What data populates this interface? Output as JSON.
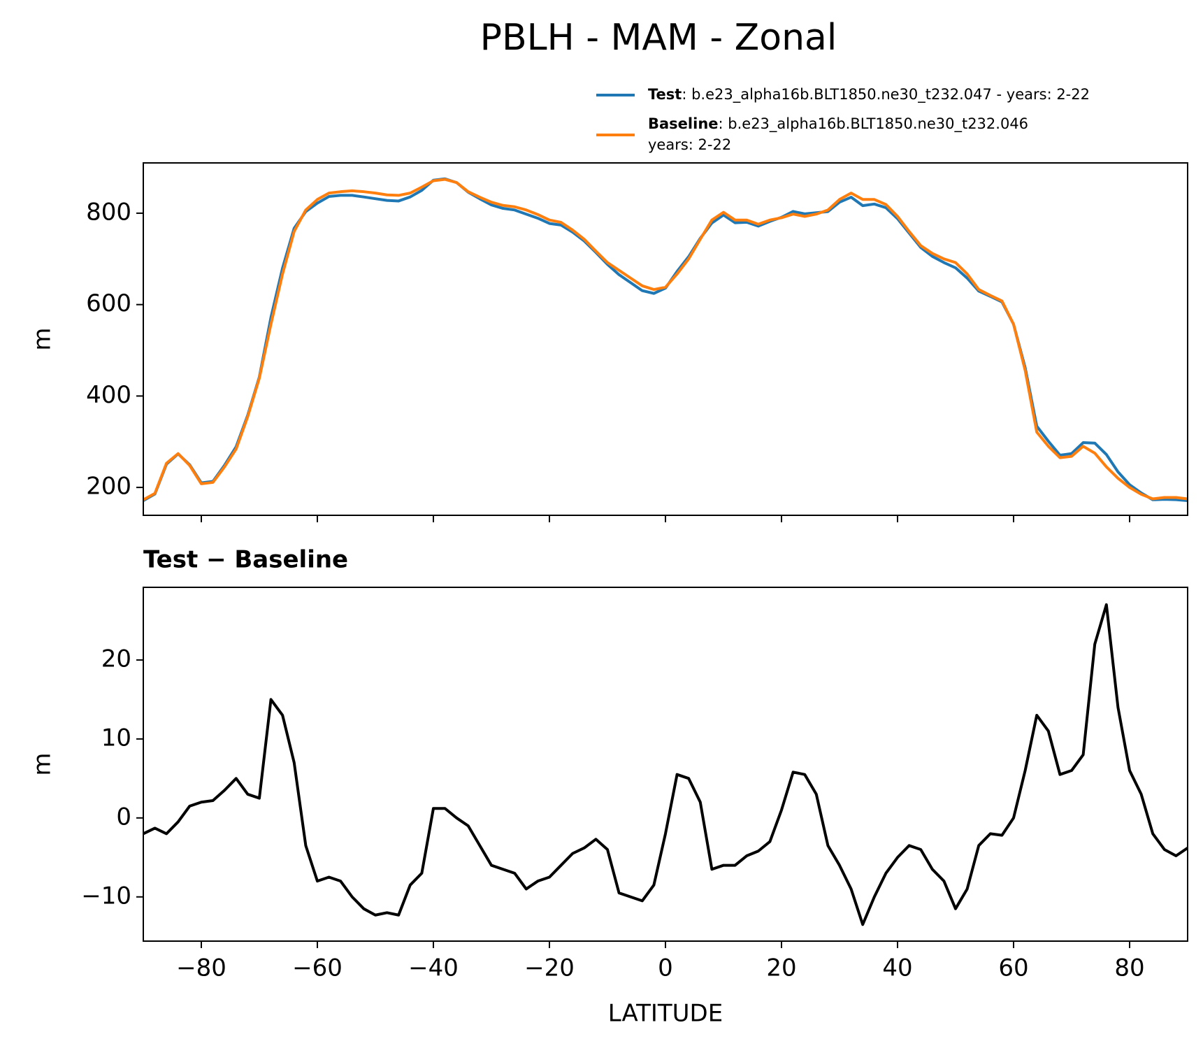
{
  "title": "PBLH - MAM - Zonal",
  "chart_data": [
    {
      "type": "line",
      "ylabel": "m",
      "x": [
        -90,
        -88,
        -86,
        -84,
        -82,
        -80,
        -78,
        -76,
        -74,
        -72,
        -70,
        -68,
        -66,
        -64,
        -62,
        -60,
        -58,
        -56,
        -54,
        -52,
        -50,
        -48,
        -46,
        -44,
        -42,
        -40,
        -38,
        -36,
        -34,
        -32,
        -30,
        -28,
        -26,
        -24,
        -22,
        -20,
        -18,
        -16,
        -14,
        -12,
        -10,
        -8,
        -6,
        -4,
        -2,
        0,
        2,
        4,
        6,
        8,
        10,
        12,
        14,
        16,
        18,
        20,
        22,
        24,
        26,
        28,
        30,
        32,
        34,
        36,
        38,
        40,
        42,
        44,
        46,
        48,
        50,
        52,
        54,
        56,
        58,
        60,
        62,
        64,
        66,
        68,
        70,
        72,
        74,
        76,
        78,
        80,
        82,
        84,
        86,
        88,
        90
      ],
      "series": [
        {
          "name": "Test",
          "description": [
            ": b.e23_alpha16b.BLT1850.ne30_t232.047 - years: 2-22"
          ],
          "color": "#1f77b4",
          "values": [
            171,
            185.7,
            251,
            273.5,
            249.5,
            210,
            213.2,
            248.5,
            289,
            358,
            441.5,
            572,
            680,
            767,
            803.5,
            822,
            836.5,
            839,
            839,
            835.5,
            831.7,
            828,
            826.7,
            835.5,
            850,
            872.2,
            875.2,
            867,
            846,
            831.5,
            818,
            810.5,
            807,
            798,
            789,
            777.5,
            774,
            758.5,
            739.2,
            714.3,
            688,
            665.5,
            648,
            630.5,
            624.5,
            636,
            672.5,
            705,
            745,
            778.5,
            796,
            779,
            780.2,
            771.8,
            782,
            791,
            803.8,
            798.5,
            801,
            803.5,
            824,
            835,
            816.5,
            820,
            812,
            788,
            756.5,
            725,
            705.5,
            692,
            680.5,
            658,
            629.5,
            618,
            605.8,
            557,
            462,
            334,
            301,
            270.5,
            274,
            298,
            297,
            272,
            234,
            206,
            188,
            173,
            174,
            173.2,
            171.2
          ]
        },
        {
          "name": "Baseline",
          "description": [
            ": b.e23_alpha16b.BLT1850.ne30_t232.046",
            "years: 2-22"
          ],
          "color": "#ff7f0e",
          "values": [
            173,
            187,
            253,
            274,
            248,
            208,
            211,
            245,
            284,
            355,
            439,
            557,
            667,
            760,
            807,
            830,
            844,
            847,
            849,
            847,
            844,
            840,
            839,
            844,
            857,
            871,
            874,
            867,
            847,
            835,
            824,
            817,
            814,
            807,
            797,
            785,
            780,
            763,
            743,
            717,
            692,
            675,
            658,
            641,
            633,
            638,
            667,
            700,
            743,
            785,
            802,
            785,
            785,
            776,
            785,
            790,
            798,
            793,
            798,
            807,
            830,
            844,
            830,
            830,
            819,
            793,
            760,
            729,
            712,
            700,
            692,
            667,
            633,
            620,
            608,
            557,
            456,
            321,
            290,
            265,
            268,
            290,
            275,
            245,
            220,
            200,
            185,
            175,
            178,
            178,
            175
          ]
        }
      ],
      "xlim": [
        -90,
        90
      ],
      "xticks": [
        -80,
        -60,
        -40,
        -20,
        0,
        20,
        40,
        60,
        80
      ],
      "show_xticklabels": false,
      "ylim": [
        139,
        910
      ],
      "yticks": [
        200,
        400,
        600,
        800
      ]
    },
    {
      "type": "line",
      "title": "Test − Baseline",
      "xlabel": "LATITUDE",
      "ylabel": "m",
      "x": [
        -90,
        -88,
        -86,
        -84,
        -82,
        -80,
        -78,
        -76,
        -74,
        -72,
        -70,
        -68,
        -66,
        -64,
        -62,
        -60,
        -58,
        -56,
        -54,
        -52,
        -50,
        -48,
        -46,
        -44,
        -42,
        -40,
        -38,
        -36,
        -34,
        -32,
        -30,
        -28,
        -26,
        -24,
        -22,
        -20,
        -18,
        -16,
        -14,
        -12,
        -10,
        -8,
        -6,
        -4,
        -2,
        0,
        2,
        4,
        6,
        8,
        10,
        12,
        14,
        16,
        18,
        20,
        22,
        24,
        26,
        28,
        30,
        32,
        34,
        36,
        38,
        40,
        42,
        44,
        46,
        48,
        50,
        52,
        54,
        56,
        58,
        60,
        62,
        64,
        66,
        68,
        70,
        72,
        74,
        76,
        78,
        80,
        82,
        84,
        86,
        88,
        90
      ],
      "color": "#000000",
      "values": [
        -2,
        -1.3,
        -2,
        -0.5,
        1.5,
        2,
        2.2,
        3.5,
        5,
        3,
        2.5,
        15,
        13,
        7,
        -3.5,
        -8,
        -7.5,
        -8,
        -10,
        -11.5,
        -12.3,
        -12,
        -12.3,
        -8.5,
        -7,
        1.2,
        1.2,
        0,
        -1,
        -3.5,
        -6,
        -6.5,
        -7,
        -9,
        -8,
        -7.5,
        -6,
        -4.5,
        -3.8,
        -2.7,
        -4,
        -9.5,
        -10,
        -10.5,
        -8.5,
        -2,
        5.5,
        5,
        2,
        -6.5,
        -6,
        -6,
        -4.8,
        -4.2,
        -3,
        1,
        5.8,
        5.5,
        3,
        -3.5,
        -6,
        -9,
        -13.5,
        -10,
        -7,
        -5,
        -3.5,
        -4,
        -6.5,
        -8,
        -11.5,
        -9,
        -3.5,
        -2,
        -2.2,
        0,
        6,
        13,
        11,
        5.5,
        6,
        8,
        22,
        27,
        14,
        6,
        3,
        -2,
        -4,
        -4.8,
        -3.8
      ],
      "xlim": [
        -90,
        90
      ],
      "xticks": [
        {
          "value": -80,
          "label": "−80"
        },
        {
          "value": -60,
          "label": "−60"
        },
        {
          "value": -40,
          "label": "−40"
        },
        {
          "value": -20,
          "label": "−20"
        },
        0,
        20,
        40,
        60,
        80
      ],
      "ylim": [
        -15.6,
        29.2
      ],
      "yticks": [
        {
          "value": -10,
          "label": "−10"
        },
        0,
        10,
        20
      ]
    }
  ]
}
